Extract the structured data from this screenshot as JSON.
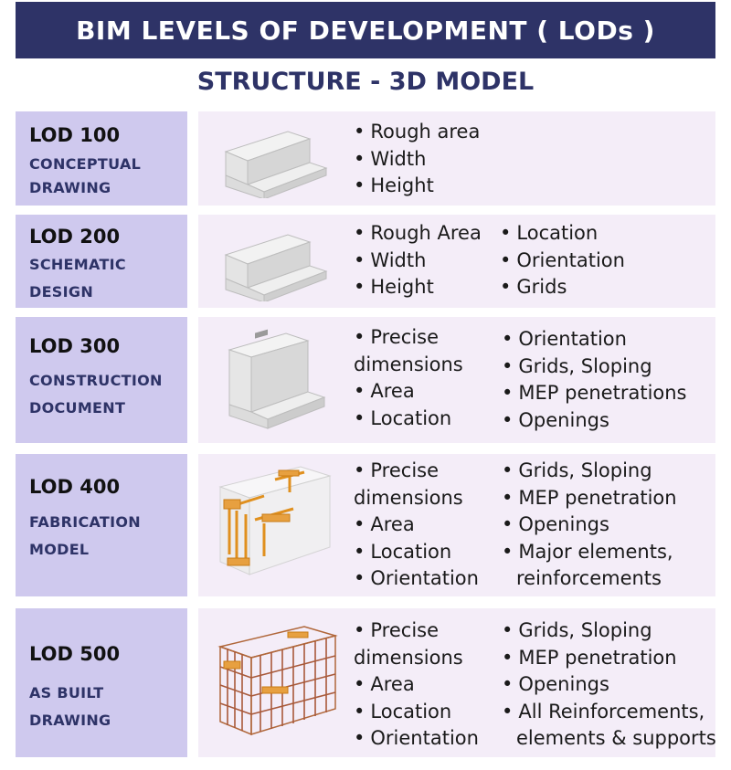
{
  "title": "BIM LEVELS OF DEVELOPMENT ( LODs )",
  "subtitle": "STRUCTURE - 3D MODEL",
  "levels": [
    {
      "name": "LOD 100",
      "sub1": "CONCEPTUAL",
      "sub2": "DRAWING",
      "col1": [
        "Rough area",
        "Width",
        "Height"
      ],
      "col2": []
    },
    {
      "name": "LOD 200",
      "sub1": "SCHEMATIC",
      "sub2": "DESIGN",
      "col1": [
        "Rough Area",
        "Width",
        "Height"
      ],
      "col2": [
        "Location",
        "Orientation",
        "Grids"
      ]
    },
    {
      "name": "LOD 300",
      "sub1": "CONSTRUCTION",
      "sub2": "DOCUMENT",
      "col1a": "Precise",
      "col1b": "dimensions",
      "col1": [
        "Area",
        "Location"
      ],
      "col2": [
        "Orientation",
        "Grids, Sloping",
        "MEP penetrations",
        "Openings"
      ]
    },
    {
      "name": "LOD 400",
      "sub1": "FABRICATION",
      "sub2": "MODEL",
      "col1a": "Precise",
      "col1b": "dimensions",
      "col1": [
        "Area",
        "Location",
        "Orientation"
      ],
      "col2": [
        "Grids, Sloping",
        "MEP penetration",
        "Openings",
        "Major elements,"
      ],
      "col2cont": "reinforcements"
    },
    {
      "name": "LOD 500",
      "sub1": "AS BUILT",
      "sub2": "DRAWING",
      "col1a": "Precise",
      "col1b": "dimensions",
      "col1": [
        "Area",
        "Location",
        "Orientation"
      ],
      "col2": [
        "Grids, Sloping",
        "MEP penetration",
        "Openings",
        "All Reinforcements,"
      ],
      "col2cont": "elements & supports"
    }
  ],
  "colors": {
    "title_bg": "#2e3367",
    "label_bg": "#cfc9ee",
    "content_bg": "#f4edf8",
    "rebar": "#e0901e"
  }
}
